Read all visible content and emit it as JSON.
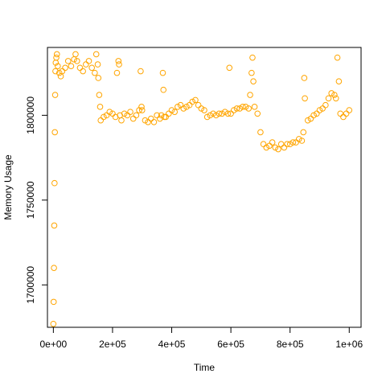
{
  "chart_data": {
    "type": "scatter",
    "title": "",
    "xlabel": "Time",
    "ylabel": "Memory Usage",
    "xlim": [
      -20000,
      1040000
    ],
    "ylim": [
      1675000,
      1840000
    ],
    "x_ticks": [
      0,
      200000,
      400000,
      600000,
      800000,
      1000000
    ],
    "x_tick_labels": [
      "0e+00",
      "2e+05",
      "4e+05",
      "6e+05",
      "8e+05",
      "1e+06"
    ],
    "y_ticks": [
      1700000,
      1750000,
      1800000
    ],
    "y_tick_labels": [
      "1700000",
      "1750000",
      "1800000"
    ],
    "grid": false,
    "legend": "none",
    "marker": "open-circle",
    "color": "#FFA500",
    "series": [
      {
        "x": [
          0,
          1000,
          2000,
          3000,
          4000,
          5000,
          6000,
          7000,
          8000,
          10000,
          12000,
          15000,
          20000,
          25000,
          30000,
          40000,
          50000,
          60000,
          70000,
          75000,
          80000,
          90000,
          100000,
          110000,
          120000,
          130000,
          140000,
          145000,
          150000,
          152000,
          155000,
          158000,
          160000,
          170000,
          180000,
          190000,
          200000,
          210000,
          215000,
          220000,
          222000,
          225000,
          230000,
          240000,
          250000,
          260000,
          270000,
          280000,
          290000,
          295000,
          298000,
          300000,
          310000,
          320000,
          330000,
          340000,
          350000,
          360000,
          365000,
          370000,
          372000,
          375000,
          380000,
          390000,
          400000,
          410000,
          420000,
          430000,
          440000,
          450000,
          460000,
          470000,
          480000,
          490000,
          500000,
          510000,
          520000,
          530000,
          540000,
          550000,
          560000,
          570000,
          580000,
          590000,
          595000,
          600000,
          610000,
          620000,
          630000,
          640000,
          650000,
          660000,
          665000,
          670000,
          673000,
          676000,
          680000,
          690000,
          700000,
          710000,
          720000,
          730000,
          740000,
          750000,
          760000,
          770000,
          780000,
          790000,
          800000,
          810000,
          820000,
          830000,
          840000,
          845000,
          848000,
          850000,
          860000,
          870000,
          880000,
          890000,
          900000,
          910000,
          920000,
          930000,
          940000,
          950000,
          955000,
          960000,
          965000,
          970000,
          980000,
          990000,
          1000000
        ],
        "y": [
          1677000,
          1690000,
          1710000,
          1735000,
          1760000,
          1790000,
          1812000,
          1826000,
          1831000,
          1834000,
          1836000,
          1829000,
          1825000,
          1823000,
          1826000,
          1828000,
          1832000,
          1829000,
          1833000,
          1836000,
          1832000,
          1828000,
          1826000,
          1830000,
          1832000,
          1828000,
          1825000,
          1836000,
          1830000,
          1822000,
          1812000,
          1805000,
          1797000,
          1799000,
          1800000,
          1802000,
          1801000,
          1799000,
          1825000,
          1832000,
          1830000,
          1800000,
          1797000,
          1801000,
          1800000,
          1802000,
          1798000,
          1800000,
          1803000,
          1826000,
          1805000,
          1803000,
          1797000,
          1796000,
          1798000,
          1796000,
          1800000,
          1798000,
          1800000,
          1825000,
          1815000,
          1799000,
          1799000,
          1801000,
          1803000,
          1802000,
          1805000,
          1806000,
          1804000,
          1805000,
          1806000,
          1808000,
          1809000,
          1806000,
          1804000,
          1803000,
          1799000,
          1800000,
          1801000,
          1800000,
          1801000,
          1801000,
          1802000,
          1801000,
          1828000,
          1801000,
          1803000,
          1804000,
          1804000,
          1805000,
          1805000,
          1804000,
          1812000,
          1825000,
          1834000,
          1820000,
          1805000,
          1801000,
          1790000,
          1783000,
          1781000,
          1782000,
          1784000,
          1781000,
          1780000,
          1783000,
          1781000,
          1783000,
          1783000,
          1784000,
          1784000,
          1786000,
          1785000,
          1790000,
          1822000,
          1810000,
          1797000,
          1798000,
          1800000,
          1801000,
          1803000,
          1804000,
          1806000,
          1810000,
          1813000,
          1812000,
          1810000,
          1834000,
          1820000,
          1801000,
          1799000,
          1801000,
          1803000
        ]
      }
    ]
  }
}
